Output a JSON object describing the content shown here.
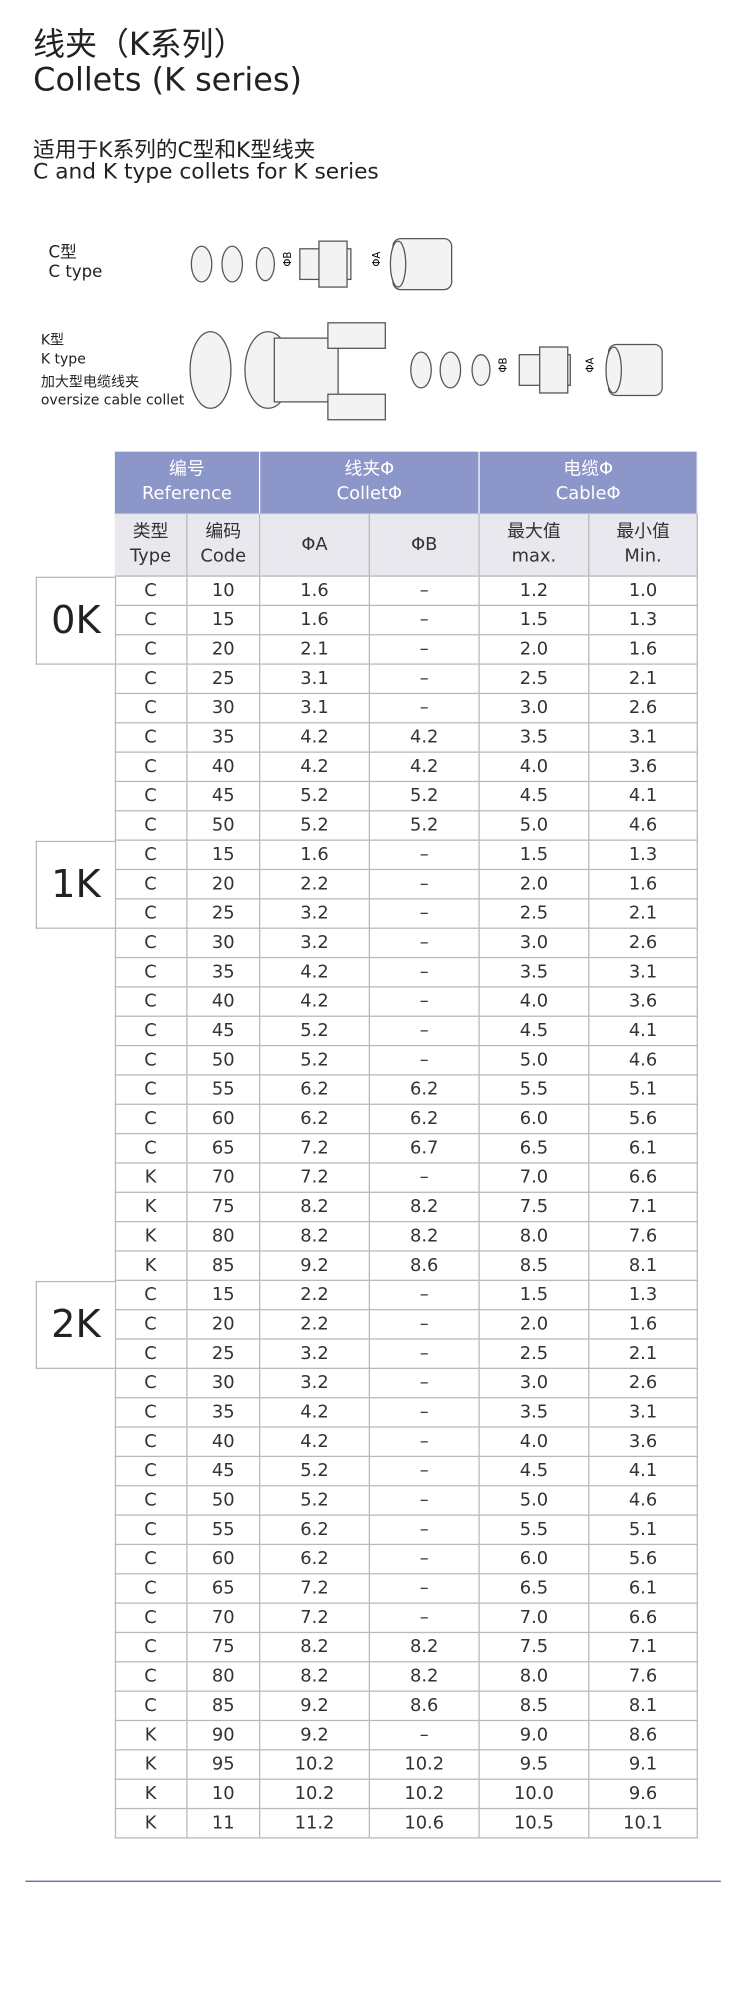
{
  "header": {
    "title_cn": "线夹（K系列）",
    "title_en": "Collets (K series)",
    "subtitle_cn": "适用于K系列的C型和K型线夹",
    "subtitle_en": "C and K type collets for K series"
  },
  "diagram": {
    "c_type": {
      "label_cn": "C型",
      "label_en": "C type",
      "dims": [
        "ΦB",
        "ΦA"
      ]
    },
    "k_type": {
      "label_cn": "K型",
      "label_en": "K type",
      "note_cn": "加大型电缆线夹",
      "note_en": "oversize cable collet",
      "dims": [
        "ΦB",
        "ΦA"
      ]
    }
  },
  "table": {
    "header_top": [
      [
        "编号",
        "Reference"
      ],
      [
        "线夹Φ",
        "ColletΦ"
      ],
      [
        "电缆Φ",
        "CableΦ"
      ]
    ],
    "header_sub": [
      [
        "类型",
        "Type"
      ],
      [
        "编码",
        "Code"
      ],
      [
        "ΦA"
      ],
      [
        "ΦB"
      ],
      [
        "最大值",
        "max."
      ],
      [
        "最小值",
        "Min."
      ]
    ],
    "groups": [
      {
        "label": "0K",
        "rows": [
          [
            "C",
            "10",
            "1.6",
            "–",
            "1.2",
            "1.0"
          ],
          [
            "C",
            "15",
            "1.6",
            "–",
            "1.5",
            "1.3"
          ],
          [
            "C",
            "20",
            "2.1",
            "–",
            "2.0",
            "1.6"
          ],
          [
            "C",
            "25",
            "3.1",
            "–",
            "2.5",
            "2.1"
          ],
          [
            "C",
            "30",
            "3.1",
            "–",
            "3.0",
            "2.6"
          ],
          [
            "C",
            "35",
            "4.2",
            "4.2",
            "3.5",
            "3.1"
          ],
          [
            "C",
            "40",
            "4.2",
            "4.2",
            "4.0",
            "3.6"
          ],
          [
            "C",
            "45",
            "5.2",
            "5.2",
            "4.5",
            "4.1"
          ],
          [
            "C",
            "50",
            "5.2",
            "5.2",
            "5.0",
            "4.6"
          ]
        ]
      },
      {
        "label": "1K",
        "rows": [
          [
            "C",
            "15",
            "1.6",
            "–",
            "1.5",
            "1.3"
          ],
          [
            "C",
            "20",
            "2.2",
            "–",
            "2.0",
            "1.6"
          ],
          [
            "C",
            "25",
            "3.2",
            "–",
            "2.5",
            "2.1"
          ],
          [
            "C",
            "30",
            "3.2",
            "–",
            "3.0",
            "2.6"
          ],
          [
            "C",
            "35",
            "4.2",
            "–",
            "3.5",
            "3.1"
          ],
          [
            "C",
            "40",
            "4.2",
            "–",
            "4.0",
            "3.6"
          ],
          [
            "C",
            "45",
            "5.2",
            "–",
            "4.5",
            "4.1"
          ],
          [
            "C",
            "50",
            "5.2",
            "–",
            "5.0",
            "4.6"
          ],
          [
            "C",
            "55",
            "6.2",
            "6.2",
            "5.5",
            "5.1"
          ],
          [
            "C",
            "60",
            "6.2",
            "6.2",
            "6.0",
            "5.6"
          ],
          [
            "C",
            "65",
            "7.2",
            "6.7",
            "6.5",
            "6.1"
          ],
          [
            "K",
            "70",
            "7.2",
            "–",
            "7.0",
            "6.6"
          ],
          [
            "K",
            "75",
            "8.2",
            "8.2",
            "7.5",
            "7.1"
          ],
          [
            "K",
            "80",
            "8.2",
            "8.2",
            "8.0",
            "7.6"
          ],
          [
            "K",
            "85",
            "9.2",
            "8.6",
            "8.5",
            "8.1"
          ]
        ]
      },
      {
        "label": "2K",
        "rows": [
          [
            "C",
            "15",
            "2.2",
            "–",
            "1.5",
            "1.3"
          ],
          [
            "C",
            "20",
            "2.2",
            "–",
            "2.0",
            "1.6"
          ],
          [
            "C",
            "25",
            "3.2",
            "–",
            "2.5",
            "2.1"
          ],
          [
            "C",
            "30",
            "3.2",
            "–",
            "3.0",
            "2.6"
          ],
          [
            "C",
            "35",
            "4.2",
            "–",
            "3.5",
            "3.1"
          ],
          [
            "C",
            "40",
            "4.2",
            "–",
            "4.0",
            "3.6"
          ],
          [
            "C",
            "45",
            "5.2",
            "–",
            "4.5",
            "4.1"
          ],
          [
            "C",
            "50",
            "5.2",
            "–",
            "5.0",
            "4.6"
          ],
          [
            "C",
            "55",
            "6.2",
            "–",
            "5.5",
            "5.1"
          ],
          [
            "C",
            "60",
            "6.2",
            "–",
            "6.0",
            "5.6"
          ],
          [
            "C",
            "65",
            "7.2",
            "–",
            "6.5",
            "6.1"
          ],
          [
            "C",
            "70",
            "7.2",
            "–",
            "7.0",
            "6.6"
          ],
          [
            "C",
            "75",
            "8.2",
            "8.2",
            "7.5",
            "7.1"
          ],
          [
            "C",
            "80",
            "8.2",
            "8.2",
            "8.0",
            "7.6"
          ],
          [
            "C",
            "85",
            "9.2",
            "8.6",
            "8.5",
            "8.1"
          ],
          [
            "K",
            "90",
            "9.2",
            "–",
            "9.0",
            "8.6"
          ],
          [
            "K",
            "95",
            "10.2",
            "10.2",
            "9.5",
            "9.1"
          ],
          [
            "K",
            "10",
            "10.2",
            "10.2",
            "10.0",
            "9.6"
          ],
          [
            "K",
            "11",
            "11.2",
            "10.6",
            "10.5",
            "10.1"
          ]
        ]
      }
    ]
  }
}
